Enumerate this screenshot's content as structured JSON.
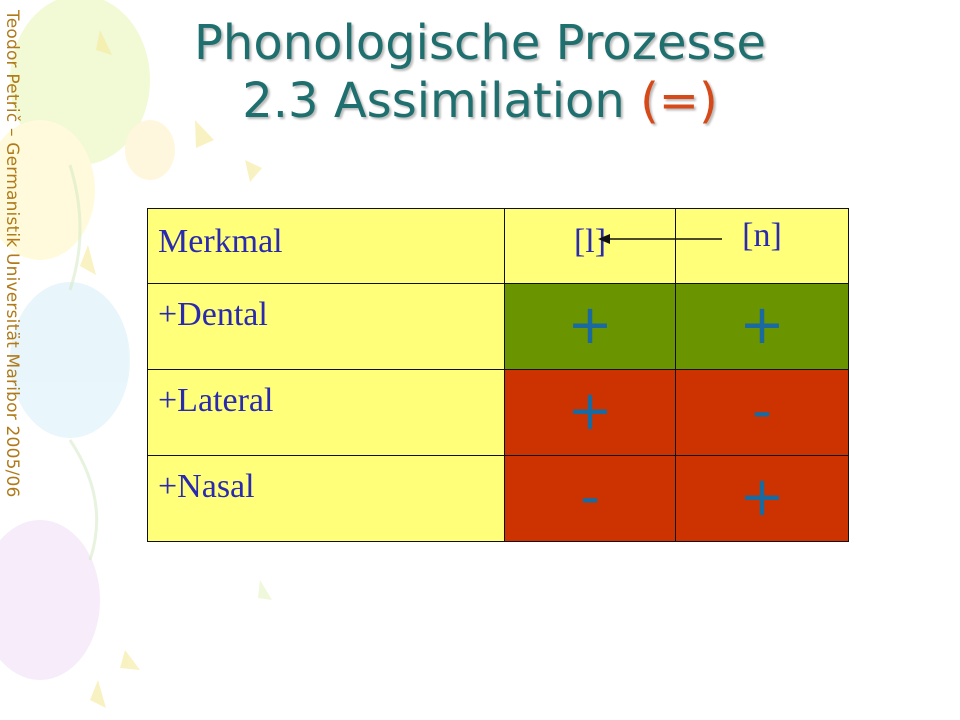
{
  "side_credit": "Teodor Petrič – Germanistik Universität Maribor 2005/06",
  "title": {
    "line1": "Phonologische Prozesse",
    "line2_main": "2.3 Assimilation ",
    "line2_accent": "(=)"
  },
  "table": {
    "headers": [
      "Merkmal",
      "[l]",
      "[n]"
    ],
    "rows": [
      {
        "feature": "+Dental",
        "l": "+",
        "n": "+"
      },
      {
        "feature": "+Lateral",
        "l": "+",
        "n": "-"
      },
      {
        "feature": "+Nasal",
        "l": "-",
        "n": "+"
      }
    ]
  },
  "colors": {
    "title": "#1f6f6f",
    "accent": "#d64a1a",
    "header_bg": "#ffff7a",
    "match_bg": "#6a9400",
    "mismatch_bg": "#cc3300",
    "label_text": "#2a2ab0",
    "sign_text": "#1a6aa0"
  }
}
